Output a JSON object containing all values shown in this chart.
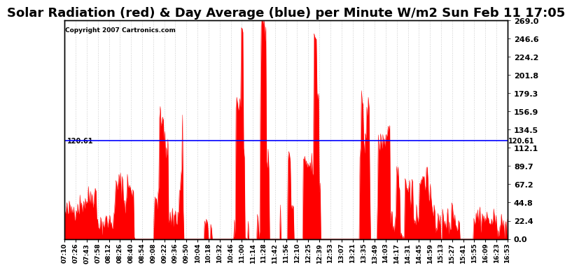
{
  "title": "Solar Radiation (red) & Day Average (blue) per Minute W/m2 Sun Feb 11 17:05",
  "copyright": "Copyright 2007 Cartronics.com",
  "day_average": 120.61,
  "y_max": 269.0,
  "y_min": 0.0,
  "y_ticks": [
    0.0,
    22.4,
    44.8,
    67.2,
    89.7,
    112.1,
    134.5,
    156.9,
    179.3,
    201.8,
    224.2,
    246.6,
    269.0
  ],
  "x_labels": [
    "07:10",
    "07:26",
    "07:43",
    "07:58",
    "08:12",
    "08:26",
    "08:40",
    "08:54",
    "09:08",
    "09:22",
    "09:36",
    "09:50",
    "10:04",
    "10:18",
    "10:32",
    "10:46",
    "11:00",
    "11:14",
    "11:28",
    "11:42",
    "11:56",
    "12:10",
    "12:25",
    "12:39",
    "12:53",
    "13:07",
    "13:21",
    "13:35",
    "13:49",
    "14:03",
    "14:17",
    "14:31",
    "14:45",
    "14:59",
    "15:13",
    "15:27",
    "15:41",
    "15:55",
    "16:09",
    "16:23",
    "16:53"
  ],
  "background_color": "#ffffff",
  "plot_bg_color": "#ffffff",
  "fill_color": "#ff0000",
  "line_color": "#0000ff",
  "title_fontsize": 13,
  "grid_color": "#cccccc"
}
